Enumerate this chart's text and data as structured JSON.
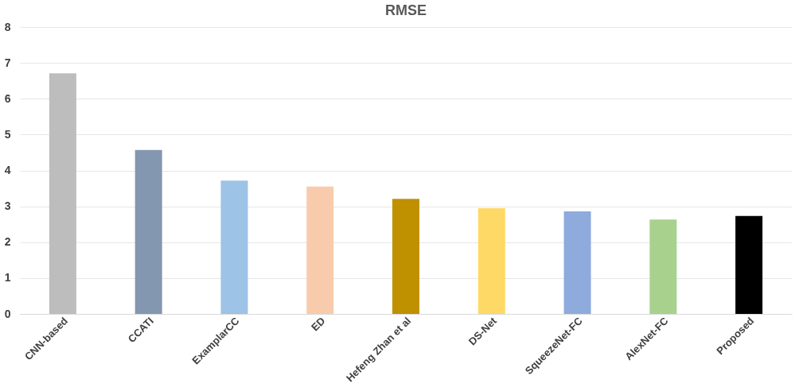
{
  "chart_data": {
    "type": "bar",
    "title": "RMSE",
    "categories": [
      "CNN-based",
      "CCATI",
      "ExamplarCC",
      "ED",
      "Hefeng Zhan et al",
      "DS-Net",
      "SqueezeNet-FC",
      "AlexNet-FC",
      "Proposed"
    ],
    "values": [
      6.71,
      4.57,
      3.72,
      3.55,
      3.21,
      2.95,
      2.86,
      2.63,
      2.73
    ],
    "colors": [
      "#bdbdbd",
      "#8497b0",
      "#9dc3e6",
      "#f8cbad",
      "#bf9000",
      "#ffd966",
      "#8faadc",
      "#a9d18e",
      "#000000"
    ],
    "ylim": [
      0,
      8
    ],
    "yticks": [
      0,
      1,
      2,
      3,
      4,
      5,
      6,
      7,
      8
    ],
    "grid": "y"
  }
}
